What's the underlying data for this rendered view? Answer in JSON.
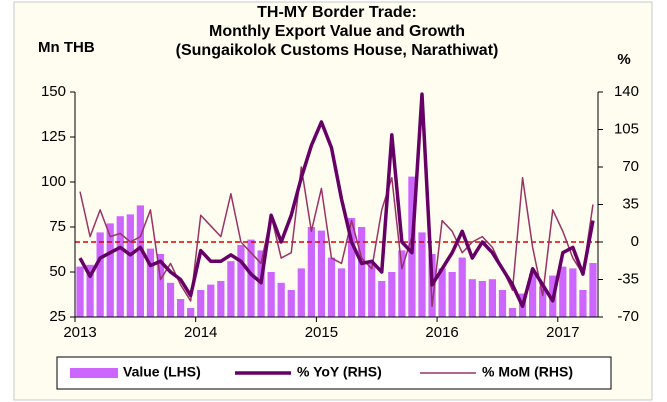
{
  "chart_data": {
    "type": "bar_line",
    "title": [
      "TH-MY Border Trade:",
      "Monthly Export Value and Growth",
      "(Sungaikolok Customs House, Narathiwat)"
    ],
    "y_label": "Mn THB",
    "y2_label": "%",
    "categories": [
      "2013",
      null,
      null,
      null,
      null,
      null,
      null,
      null,
      null,
      null,
      null,
      null,
      "2014",
      null,
      null,
      null,
      null,
      null,
      null,
      null,
      null,
      null,
      null,
      null,
      "2015",
      null,
      null,
      null,
      null,
      null,
      null,
      null,
      null,
      null,
      null,
      null,
      "2016",
      null,
      null,
      null,
      null,
      null,
      null,
      null,
      null,
      null,
      null,
      null,
      "2017",
      null,
      null,
      null
    ],
    "series": [
      {
        "name": "Value (LHS)",
        "type": "bar",
        "color": "#cc66ff",
        "axis": "y",
        "values": [
          53,
          54,
          72,
          77,
          81,
          82,
          87,
          63,
          60,
          44,
          35,
          30,
          40,
          43,
          45,
          56,
          65,
          68,
          62,
          50,
          44,
          40,
          52,
          75,
          73,
          58,
          52,
          80,
          75,
          55,
          45,
          50,
          62,
          103,
          72,
          60,
          52,
          50,
          58,
          46,
          45,
          46,
          40,
          30,
          38,
          49,
          42,
          48,
          53,
          52,
          40,
          55
        ]
      },
      {
        "name": "% YoY (RHS)",
        "type": "line",
        "color": "#660066",
        "width": 3.5,
        "axis": "y2",
        "values": [
          -15,
          -32,
          -15,
          -10,
          -5,
          -12,
          -5,
          -22,
          -18,
          -28,
          -35,
          -50,
          -8,
          -18,
          -18,
          -12,
          -18,
          -30,
          -38,
          25,
          0,
          25,
          60,
          90,
          112,
          88,
          40,
          0,
          -20,
          -18,
          -28,
          100,
          0,
          -10,
          138,
          -40,
          -25,
          -10,
          10,
          -15,
          0,
          -10,
          -25,
          -40,
          -60,
          -25,
          -40,
          -55,
          -10,
          -5,
          -30,
          20
        ]
      },
      {
        "name": "% MoM (RHS)",
        "type": "line",
        "color": "#993366",
        "width": 1.5,
        "axis": "y2",
        "values": [
          47,
          5,
          30,
          5,
          8,
          0,
          5,
          30,
          -35,
          -20,
          -40,
          -55,
          25,
          15,
          5,
          45,
          0,
          -10,
          -20,
          25,
          -15,
          -10,
          70,
          10,
          50,
          -15,
          -20,
          20,
          -15,
          -25,
          30,
          60,
          -25,
          5,
          135,
          -60,
          20,
          10,
          -10,
          0,
          5,
          -5,
          -25,
          -45,
          60,
          -5,
          -50,
          30,
          10,
          -15,
          -30,
          35
        ]
      }
    ],
    "ylim": [
      25,
      150
    ],
    "yticks": [
      25,
      50,
      75,
      100,
      125,
      150
    ],
    "y2lim": [
      -70,
      140
    ],
    "y2ticks": [
      -70,
      -35,
      0,
      35,
      70,
      105,
      140
    ],
    "reference_line": {
      "value": 0,
      "axis": "y2",
      "color": "#dd0000"
    },
    "legend": "bottom"
  }
}
